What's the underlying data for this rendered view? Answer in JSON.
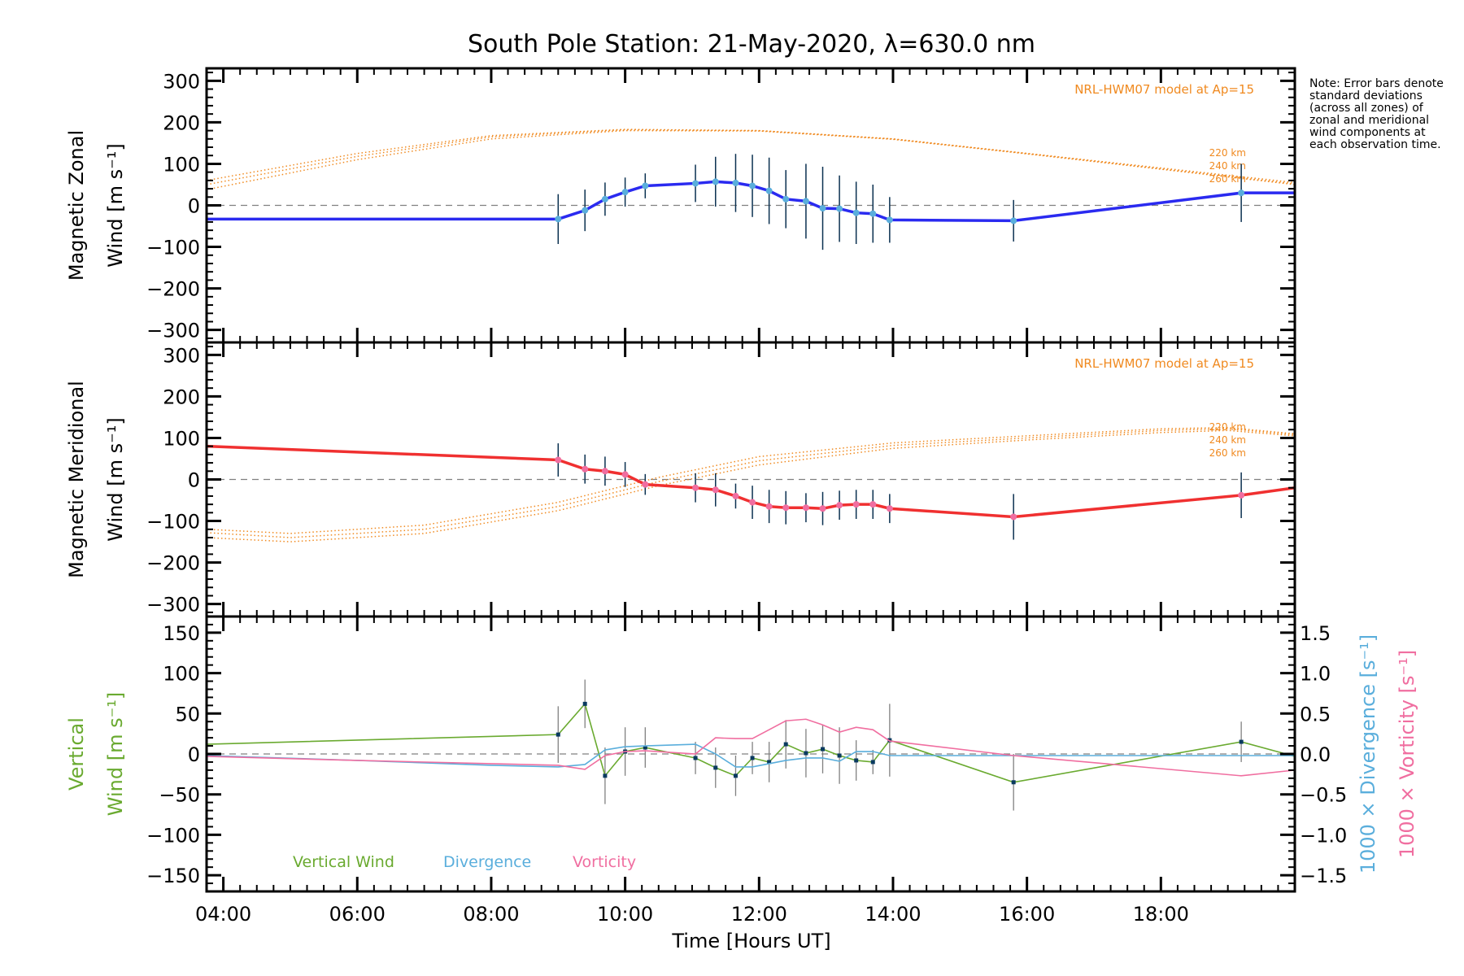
{
  "chart_data": {
    "title": "South Pole Station: 21-May-2020, λ=630.0 nm",
    "xlabel": "Time [Hours UT]",
    "xlim": [
      3.75,
      20.0
    ],
    "x_ticks": [
      4,
      6,
      8,
      10,
      12,
      14,
      16,
      18
    ],
    "x_tick_labels": [
      "04:00",
      "06:00",
      "08:00",
      "10:00",
      "12:00",
      "14:00",
      "16:00",
      "18:00"
    ],
    "note": "Note: Error bars denote standard deviations (across all zones) of zonal and meridional wind components at each observation time.",
    "panels": [
      {
        "id": "zonal",
        "type": "line",
        "ylabel_line1": "Magnetic Zonal",
        "ylabel_line2": "Wind [m s⁻¹]",
        "ylim": [
          -330,
          330
        ],
        "y_ticks": [
          300,
          200,
          100,
          0,
          -100,
          -200,
          -300
        ],
        "y_tick_labels": [
          "300",
          "200",
          "100",
          "0",
          "−100",
          "−200",
          "−300"
        ],
        "model_label": "NRL-HWM07 model at Ap=15",
        "model_altitudes": [
          "220 km",
          "240 km",
          "260 km"
        ],
        "series": [
          {
            "name": "Magnetic Zonal Wind",
            "color": "#2a2af0",
            "x": [
              3.75,
              9.0,
              9.4,
              9.7,
              10.0,
              10.3,
              11.05,
              11.35,
              11.65,
              11.9,
              12.15,
              12.4,
              12.7,
              12.95,
              13.2,
              13.45,
              13.7,
              13.95,
              15.8,
              19.2,
              20.0
            ],
            "y": [
              -33,
              -33,
              -12,
              15,
              32,
              47,
              53,
              57,
              54,
              47,
              35,
              15,
              10,
              -7,
              -8,
              -18,
              -20,
              -35,
              -37,
              30,
              30
            ],
            "err": [
              20,
              60,
              50,
              40,
              35,
              30,
              45,
              60,
              70,
              75,
              80,
              70,
              90,
              100,
              80,
              75,
              70,
              55,
              50,
              70,
              0
            ]
          }
        ],
        "model_series": [
          {
            "name": "220 km",
            "x": [
              3.75,
              6,
              8,
              10,
              12,
              14,
              16,
              18,
              20
            ],
            "y": [
              60,
              125,
              168,
              183,
              180,
              160,
              125,
              90,
              55
            ]
          },
          {
            "name": "240 km",
            "x": [
              3.75,
              6,
              8,
              10,
              12,
              14,
              16,
              18,
              20
            ],
            "y": [
              50,
              118,
              165,
              182,
              180,
              160,
              125,
              88,
              52
            ]
          },
          {
            "name": "260 km",
            "x": [
              3.75,
              6,
              8,
              10,
              12,
              14,
              16,
              18,
              20
            ],
            "y": [
              38,
              110,
              160,
              180,
              179,
              159,
              124,
              87,
              50
            ]
          }
        ]
      },
      {
        "id": "meridional",
        "type": "line",
        "ylabel_line1": "Magnetic Meridional",
        "ylabel_line2": "Wind [m s⁻¹]",
        "ylim": [
          -330,
          330
        ],
        "y_ticks": [
          300,
          200,
          100,
          0,
          -100,
          -200,
          -300
        ],
        "y_tick_labels": [
          "300",
          "200",
          "100",
          "0",
          "−100",
          "−200",
          "−300"
        ],
        "model_label": "NRL-HWM07 model at Ap=15",
        "model_altitudes": [
          "220 km",
          "240 km",
          "260 km"
        ],
        "series": [
          {
            "name": "Magnetic Meridional Wind",
            "color": "#f03030",
            "x": [
              3.75,
              9.0,
              9.4,
              9.7,
              10.0,
              10.3,
              11.05,
              11.35,
              11.65,
              11.9,
              12.15,
              12.4,
              12.7,
              12.95,
              13.2,
              13.45,
              13.7,
              13.95,
              15.8,
              19.2,
              20.0
            ],
            "y": [
              80,
              47,
              25,
              20,
              12,
              -12,
              -20,
              -25,
              -40,
              -55,
              -65,
              -68,
              -68,
              -70,
              -62,
              -60,
              -60,
              -70,
              -90,
              -38,
              -20
            ],
            "err": [
              35,
              40,
              35,
              35,
              30,
              25,
              35,
              40,
              30,
              40,
              40,
              40,
              35,
              40,
              35,
              35,
              35,
              35,
              55,
              55,
              0
            ]
          }
        ],
        "model_series": [
          {
            "name": "220 km",
            "x": [
              3.75,
              5,
              7,
              9,
              10.5,
              12,
              14,
              16,
              18,
              19,
              20
            ],
            "y": [
              -120,
              -130,
              -110,
              -55,
              5,
              55,
              88,
              105,
              122,
              125,
              110
            ]
          },
          {
            "name": "240 km",
            "x": [
              3.75,
              5,
              7,
              9,
              10.5,
              12,
              14,
              16,
              18,
              19,
              20
            ],
            "y": [
              -128,
              -140,
              -120,
              -65,
              -5,
              45,
              82,
              100,
              118,
              122,
              108
            ]
          },
          {
            "name": "260 km",
            "x": [
              3.75,
              5,
              7,
              9,
              10.5,
              12,
              14,
              16,
              18,
              19,
              20
            ],
            "y": [
              -140,
              -150,
              -130,
              -75,
              -15,
              35,
              75,
              95,
              113,
              118,
              105
            ]
          }
        ]
      },
      {
        "id": "vertical",
        "type": "line",
        "ylabel_line1": "Vertical",
        "ylabel_line2": "Wind [m s⁻¹]",
        "ylim": [
          -170,
          170
        ],
        "y_ticks": [
          150,
          100,
          50,
          0,
          -50,
          -100,
          -150
        ],
        "y_tick_labels": [
          "150",
          "100",
          "50",
          "0",
          "−50",
          "−100",
          "−150"
        ],
        "y2lim": [
          -1.7,
          1.7
        ],
        "y2_ticks": [
          1.5,
          1.0,
          0.5,
          0.0,
          -0.5,
          -1.0,
          -1.5
        ],
        "y2_tick_labels": [
          "1.5",
          "1.0",
          "0.5",
          "0.0",
          "−0.5",
          "−1.0",
          "−1.5"
        ],
        "y2label_divergence": "1000 × Divergence [s⁻¹]",
        "y2label_vorticity": "1000 × Vorticity [s⁻¹]",
        "legend": [
          "Vertical Wind",
          "Divergence",
          "Vorticity"
        ],
        "legend_position": "bottom-left",
        "series": [
          {
            "name": "Vertical Wind",
            "color": "#6aaa30",
            "axis": "left",
            "x": [
              3.75,
              9.0,
              9.4,
              9.7,
              10.0,
              10.3,
              11.05,
              11.35,
              11.65,
              11.9,
              12.15,
              12.4,
              12.7,
              12.95,
              13.2,
              13.45,
              13.7,
              13.95,
              15.8,
              19.2,
              20.0
            ],
            "y": [
              12,
              24,
              62,
              -27,
              3,
              8,
              -5,
              -17,
              -27,
              -5,
              -10,
              12,
              1,
              6,
              -2,
              -8,
              -10,
              17,
              -35,
              15,
              -3
            ],
            "err": [
              25,
              35,
              30,
              35,
              30,
              25,
              20,
              25,
              25,
              20,
              25,
              30,
              30,
              30,
              35,
              25,
              15,
              45,
              35,
              25,
              0
            ]
          },
          {
            "name": "Divergence",
            "color": "#5aaedc",
            "axis": "right",
            "x": [
              3.75,
              6,
              8,
              9.0,
              9.4,
              9.7,
              10.0,
              10.3,
              11.05,
              11.35,
              11.65,
              11.9,
              12.15,
              12.4,
              12.7,
              12.95,
              13.2,
              13.45,
              13.7,
              13.95,
              15.8,
              19.2,
              20.0
            ],
            "y": [
              -0.02,
              -0.08,
              -0.14,
              -0.16,
              -0.13,
              0.05,
              0.09,
              0.1,
              0.12,
              0.0,
              -0.16,
              -0.16,
              -0.12,
              -0.08,
              -0.05,
              -0.05,
              -0.09,
              0.03,
              0.03,
              -0.02,
              -0.02,
              -0.02,
              -0.02
            ]
          },
          {
            "name": "Vorticity",
            "color": "#f06ea0",
            "axis": "right",
            "x": [
              3.75,
              6,
              8,
              9.0,
              9.4,
              9.7,
              10.0,
              10.3,
              11.05,
              11.35,
              11.65,
              11.9,
              12.15,
              12.4,
              12.7,
              12.95,
              13.2,
              13.45,
              13.7,
              13.95,
              15.8,
              19.2,
              20.0
            ],
            "y": [
              -0.03,
              -0.08,
              -0.12,
              -0.14,
              -0.19,
              -0.02,
              0.03,
              0.04,
              0.0,
              0.2,
              0.19,
              0.19,
              0.3,
              0.41,
              0.43,
              0.36,
              0.27,
              0.33,
              0.3,
              0.16,
              -0.02,
              -0.27,
              -0.2
            ]
          }
        ]
      }
    ]
  }
}
